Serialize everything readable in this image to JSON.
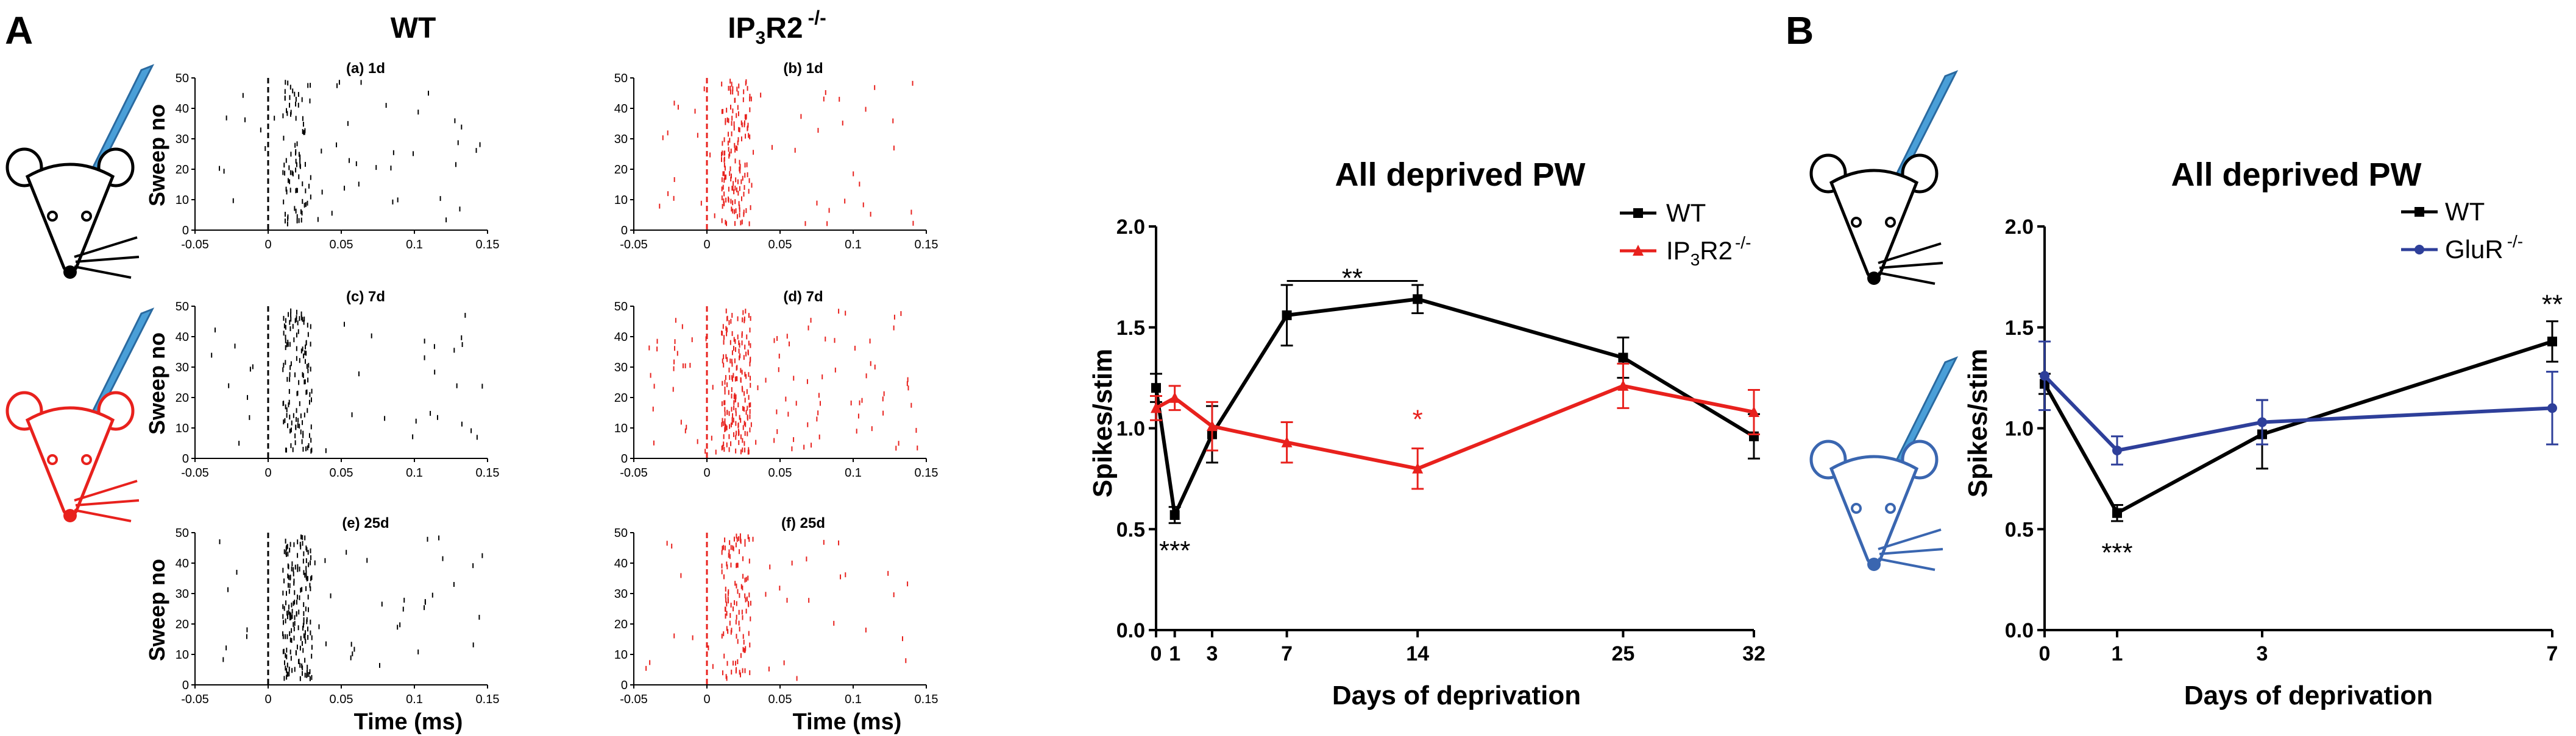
{
  "colors": {
    "wt": "#000000",
    "ko": "#e8211d",
    "gluR": "#2e3f9a",
    "pipette": "#4a9fd8",
    "mouse_blue": "#3a66b0"
  },
  "icons": [
    "pipette-icon",
    "mouse-icon"
  ],
  "panels": {
    "a_label": "A",
    "b_label": "B"
  },
  "raster": {
    "col_wt": "WT",
    "col_ko_main": "IP",
    "col_ko_sub": "3",
    "col_ko_tail": "R2",
    "col_ko_sup": "-/-",
    "ylabel": "Sweep no",
    "xlabel": "Time (ms)",
    "xticks": [
      "-0.05",
      "0",
      "0.05",
      "0.1",
      "0.15"
    ],
    "yticks": [
      "0",
      "10",
      "20",
      "30",
      "40",
      "50"
    ],
    "subplots": [
      {
        "label": "(a) 1d",
        "group": "WT"
      },
      {
        "label": "(b) 1d",
        "group": "KO"
      },
      {
        "label": "(c) 7d",
        "group": "WT"
      },
      {
        "label": "(d) 7d",
        "group": "KO"
      },
      {
        "label": "(e) 25d",
        "group": "WT"
      },
      {
        "label": "(f) 25d",
        "group": "KO"
      }
    ]
  },
  "chart_data": [
    {
      "type": "line",
      "title": "All deprived PW",
      "xlabel": "Days of deprivation",
      "ylabel": "Spikes/stim",
      "xlim": [
        0,
        32
      ],
      "ylim": [
        0,
        2.0
      ],
      "xticks": [
        "0",
        "1",
        "3",
        "7",
        "14",
        "25",
        "32"
      ],
      "yticks": [
        "0.0",
        "0.5",
        "1.0",
        "1.5",
        "2.0"
      ],
      "x": [
        0,
        1,
        3,
        7,
        14,
        25,
        32
      ],
      "series": [
        {
          "name": "WT",
          "values": [
            1.2,
            0.57,
            0.97,
            1.56,
            1.64,
            1.35,
            0.96
          ],
          "err": [
            0.07,
            0.04,
            0.14,
            0.15,
            0.07,
            0.1,
            0.11
          ]
        },
        {
          "name": "IP3R2 -/-",
          "values": [
            1.1,
            1.15,
            1.01,
            0.93,
            0.8,
            1.21,
            1.08
          ],
          "err": [
            0.06,
            0.06,
            0.12,
            0.1,
            0.1,
            0.11,
            0.11
          ]
        }
      ],
      "legend": {
        "wt": "WT",
        "ko_main": "IP",
        "ko_sub": "3",
        "ko_tail": "R2",
        "ko_sup": "-/-"
      },
      "annotations": [
        "**",
        "***",
        "*"
      ]
    },
    {
      "type": "line",
      "title": "All deprived PW",
      "xlabel": "Days of deprivation",
      "ylabel": "Spikes/stim",
      "xlim": [
        0,
        7
      ],
      "ylim": [
        0,
        2.0
      ],
      "xticks": [
        "0",
        "1",
        "3",
        "7"
      ],
      "yticks": [
        "0.0",
        "0.5",
        "1.0",
        "1.5",
        "2.0"
      ],
      "x": [
        0,
        1,
        3,
        7
      ],
      "series": [
        {
          "name": "WT",
          "values": [
            1.22,
            0.58,
            0.97,
            1.43
          ],
          "err": [
            0.05,
            0.04,
            0.17,
            0.1
          ]
        },
        {
          "name": "GluR -/-",
          "values": [
            1.26,
            0.89,
            1.03,
            1.1
          ],
          "err": [
            0.17,
            0.07,
            0.11,
            0.18
          ]
        }
      ],
      "legend": {
        "wt": "WT",
        "ko_main": "GluR",
        "ko_sup": "-/-"
      },
      "annotations": [
        "***",
        "**"
      ]
    }
  ]
}
